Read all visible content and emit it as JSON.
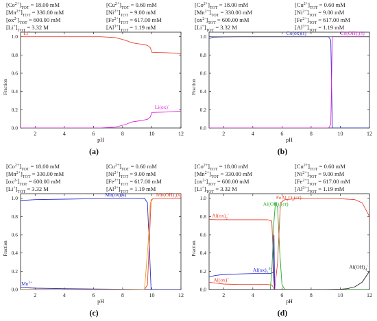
{
  "chart_data": [
    {
      "type": "line",
      "panel": "(a)",
      "header": {
        "left": [
          {
            "sym": "[Co",
            "sup": "2+",
            "sub": "]TOT",
            "val": "=   18.00 mM"
          },
          {
            "sym": "[Mn",
            "sup": "2+",
            "sub": "]TOT",
            "val": "= 330.00 mM"
          },
          {
            "sym": "[ox",
            "sup": "2-",
            "sub": "]TOT",
            "val": "= 600.00 mM"
          },
          {
            "sym": "[Li",
            "sup": "+",
            "sub": "]TOT",
            "val": "=   3.32 M"
          }
        ],
        "right": [
          {
            "sym": "[Cu",
            "sup": "2+",
            "sub": "]TOT",
            "val": "=   0.60 mM"
          },
          {
            "sym": "[Ni",
            "sup": "2+",
            "sub": "]TOT",
            "val": "=   9.00 mM"
          },
          {
            "sym": "[Fe",
            "sup": "2+",
            "sub": "]TOT",
            "val": "= 617.00 mM"
          },
          {
            "sym": "[Al",
            "sup": "3+",
            "sub": "]TOT",
            "val": "=   1.19 mM"
          }
        ]
      },
      "xlabel": "pH",
      "ylabel": "Fraction",
      "xlim": [
        1,
        12
      ],
      "ylim": [
        0,
        1.05
      ],
      "xticks": [
        2,
        4,
        6,
        8,
        10,
        12
      ],
      "yticks": [
        0.0,
        0.2,
        0.4,
        0.6,
        0.8,
        1.0
      ],
      "series": [
        {
          "name": "Li+",
          "color": "#e8412c",
          "x": [
            1,
            6.5,
            7,
            7.5,
            8,
            8.3,
            8.6,
            9,
            9.4,
            9.7,
            9.9,
            10,
            11,
            12
          ],
          "y": [
            1.0,
            1.0,
            0.995,
            0.99,
            0.97,
            0.955,
            0.935,
            0.925,
            0.915,
            0.905,
            0.88,
            0.83,
            0.825,
            0.815
          ]
        },
        {
          "name": "Li(ox)-",
          "color": "#e020e0",
          "x": [
            1,
            6.5,
            7,
            7.5,
            8,
            8.3,
            8.6,
            9,
            9.4,
            9.7,
            9.9,
            10,
            11,
            12
          ],
          "y": [
            0.0,
            0.0,
            0.005,
            0.01,
            0.03,
            0.045,
            0.065,
            0.075,
            0.085,
            0.095,
            0.12,
            0.17,
            0.175,
            0.185
          ]
        }
      ],
      "labels": [
        {
          "text": "Li",
          "sup": "+",
          "color": "#e8412c",
          "x": 1.2,
          "y": 1.02
        },
        {
          "text": "Li(ox)",
          "sup": "-",
          "color": "#e020e0",
          "x": 10.2,
          "y": 0.21
        }
      ]
    },
    {
      "type": "line",
      "panel": "(b)",
      "header": {
        "left": [
          {
            "sym": "[Co",
            "sup": "2+",
            "sub": "]TOT",
            "val": "=   18.00 mM"
          },
          {
            "sym": "[Mn",
            "sup": "2+",
            "sub": "]TOT",
            "val": "= 330.00 mM"
          },
          {
            "sym": "[ox",
            "sup": "2-",
            "sub": "]TOT",
            "val": "= 600.00 mM"
          },
          {
            "sym": "[Li",
            "sup": "+",
            "sub": "]TOT",
            "val": "=   3.32 M"
          }
        ],
        "right": [
          {
            "sym": "[Cu",
            "sup": "2+",
            "sub": "]TOT",
            "val": "=   0.60 mM"
          },
          {
            "sym": "[Ni",
            "sup": "2+",
            "sub": "]TOT",
            "val": "=   9.00 mM"
          },
          {
            "sym": "[Fe",
            "sup": "2+",
            "sub": "]TOT",
            "val": "= 617.00 mM"
          },
          {
            "sym": "[Al",
            "sup": "3+",
            "sub": "]TOT",
            "val": "=   1.19 mM"
          }
        ]
      },
      "xlabel": "pH",
      "ylabel": "Fraction",
      "xlim": [
        1,
        12
      ],
      "ylim": [
        0,
        1.05
      ],
      "xticks": [
        2,
        4,
        6,
        8,
        10,
        12
      ],
      "yticks": [
        0.0,
        0.2,
        0.4,
        0.6,
        0.8,
        1.0
      ],
      "series": [
        {
          "name": "Co(ox)(s)",
          "color": "#2a2ad0",
          "x": [
            1,
            1.3,
            2,
            3,
            6,
            9.2,
            9.35,
            9.45,
            12
          ],
          "y": [
            0.98,
            0.995,
            0.998,
            1.0,
            1.0,
            1.0,
            0.96,
            0.0,
            0.0
          ]
        },
        {
          "name": "Co(OH)2(s)",
          "color": "#e020e0",
          "x": [
            1,
            9.2,
            9.35,
            9.45,
            9.6,
            12
          ],
          "y": [
            0.0,
            0.0,
            0.04,
            1.0,
            1.0,
            1.0
          ]
        },
        {
          "name": "",
          "color": "#555555",
          "x": [
            1,
            12
          ],
          "y": [
            1.0,
            1.0
          ]
        }
      ],
      "labels": [
        {
          "text": "Co(ox)(s)",
          "sub": "",
          "color": "#2a2ad0",
          "x": 6.3,
          "y": 1.02
        },
        {
          "text": "Co(OH)",
          "sub": "2",
          "tail": "(s)",
          "color": "#e020e0",
          "x": 10.0,
          "y": 1.02
        }
      ]
    },
    {
      "type": "line",
      "panel": "(c)",
      "header": {
        "left": [
          {
            "sym": "[Co",
            "sup": "2+",
            "sub": "]TOT",
            "val": "=   18.00 mM"
          },
          {
            "sym": "[Mn",
            "sup": "2+",
            "sub": "]TOT",
            "val": "= 330.00 mM"
          },
          {
            "sym": "[ox",
            "sup": "2-",
            "sub": "]TOT",
            "val": "= 600.00 mM"
          },
          {
            "sym": "[Li",
            "sup": "+",
            "sub": "]TOT",
            "val": "=   3.32 M"
          }
        ],
        "right": [
          {
            "sym": "[Cu",
            "sup": "2+",
            "sub": "]TOT",
            "val": "=   0.60 mM"
          },
          {
            "sym": "[Ni",
            "sup": "2+",
            "sub": "]TOT",
            "val": "=   9.00 mM"
          },
          {
            "sym": "[Fe",
            "sup": "2+",
            "sub": "]TOT",
            "val": "= 617.00 mM"
          },
          {
            "sym": "[Al",
            "sup": "3+",
            "sub": "]TOT",
            "val": "=   1.19 mM"
          }
        ]
      },
      "xlabel": "pH",
      "ylabel": "Fraction",
      "xlim": [
        1,
        12
      ],
      "ylim": [
        0,
        1.05
      ],
      "xticks": [
        2,
        4,
        6,
        8,
        10,
        12
      ],
      "yticks": [
        0.0,
        0.2,
        0.4,
        0.6,
        0.8,
        1.0
      ],
      "series": [
        {
          "name": "Mn(ox)(s)",
          "color": "#2a2ad0",
          "x": [
            1,
            2,
            4,
            6,
            8,
            9.5,
            9.7,
            9.85,
            9.95,
            12
          ],
          "y": [
            0.975,
            0.985,
            0.99,
            0.995,
            0.998,
            1.0,
            0.95,
            0.4,
            0.0,
            0.0
          ]
        },
        {
          "name": "Mn(OH)2(s)",
          "color": "#e8412c",
          "x": [
            1,
            9.5,
            9.7,
            9.85,
            9.95,
            10.1,
            12
          ],
          "y": [
            0.0,
            0.0,
            0.05,
            0.6,
            0.98,
            1.0,
            1.0
          ]
        },
        {
          "name": "Mn2+",
          "color": "#2a2ad0",
          "x": [
            1,
            2,
            4,
            6,
            8,
            9.5,
            10,
            12
          ],
          "y": [
            0.022,
            0.015,
            0.01,
            0.006,
            0.003,
            0.001,
            0.0,
            0.0
          ]
        },
        {
          "name": "",
          "color": "#e8a020",
          "x": [
            1,
            9.5,
            9.75,
            9.9,
            10.1
          ],
          "y": [
            0.0,
            0.0,
            0.5,
            0.95,
            1.0
          ]
        }
      ],
      "labels": [
        {
          "text": "Mn(ox)(s)",
          "sub": "",
          "color": "#2a2ad0",
          "x": 6.8,
          "y": 1.02
        },
        {
          "text": "Mn(OH)",
          "sub": "2",
          "tail": "(s)",
          "color": "#e8412c",
          "x": 10.3,
          "y": 1.02
        },
        {
          "text": "Mn",
          "sup": "2+",
          "color": "#2a2ad0",
          "x": 1.05,
          "y": 0.045
        }
      ]
    },
    {
      "type": "line",
      "panel": "(d)",
      "header": {
        "left": [
          {
            "sym": "[Co",
            "sup": "2+",
            "sub": "]TOT",
            "val": "=   18.00 mM"
          },
          {
            "sym": "[Mn",
            "sup": "2+",
            "sub": "]TOT",
            "val": "= 330.00 mM"
          },
          {
            "sym": "[ox",
            "sup": "2-",
            "sub": "]TOT",
            "val": "= 600.00 mM"
          },
          {
            "sym": "[Li",
            "sup": "+",
            "sub": "]TOT",
            "val": "=   3.32 M"
          }
        ],
        "right": [
          {
            "sym": "[Cu",
            "sup": "2+",
            "sub": "]TOT",
            "val": "=   0.60 mM"
          },
          {
            "sym": "[Ni",
            "sup": "2+",
            "sub": "]TOT",
            "val": "=   9.00 mM"
          },
          {
            "sym": "[Fe",
            "sup": "2+",
            "sub": "]TOT",
            "val": "= 617.00 mM"
          },
          {
            "sym": "[Al",
            "sup": "3+",
            "sub": "]TOT",
            "val": "=   1.19 mM"
          }
        ]
      },
      "xlabel": "pH",
      "ylabel": "Fraction",
      "xlim": [
        1,
        12
      ],
      "ylim": [
        0,
        1.05
      ],
      "xticks": [
        2,
        4,
        6,
        8,
        10,
        12
      ],
      "yticks": [
        0.0,
        0.2,
        0.4,
        0.6,
        0.8,
        1.0
      ],
      "series": [
        {
          "name": "Al(ox)2-",
          "color": "#e8412c",
          "x": [
            1,
            1.5,
            2,
            3,
            4,
            5,
            5.3,
            5.5,
            12
          ],
          "y": [
            0.77,
            0.765,
            0.765,
            0.765,
            0.765,
            0.765,
            0.75,
            0.0,
            0.0
          ]
        },
        {
          "name": "Al(ox)3-3",
          "color": "#2a2ad0",
          "x": [
            1,
            1.5,
            2,
            3,
            4,
            5,
            5.2,
            5.4,
            5.5,
            12
          ],
          "y": [
            0.14,
            0.155,
            0.165,
            0.17,
            0.175,
            0.175,
            0.175,
            0.19,
            0.0,
            0.0
          ]
        },
        {
          "name": "Al(ox)+",
          "color": "#e8412c",
          "x": [
            1,
            1.5,
            2,
            3,
            4,
            5,
            5.3,
            5.5,
            12
          ],
          "y": [
            0.08,
            0.07,
            0.06,
            0.055,
            0.055,
            0.055,
            0.05,
            0.0,
            0.0
          ]
        },
        {
          "name": "Al(OH)3(cr)",
          "color": "#22aa22",
          "x": [
            1,
            5.2,
            5.3,
            5.45,
            5.55,
            5.7,
            5.85,
            6.0,
            6.2,
            12
          ],
          "y": [
            0.0,
            0.0,
            0.2,
            0.75,
            0.95,
            0.9,
            0.4,
            0.05,
            0.0,
            0.0
          ]
        },
        {
          "name": "FeAl2O4(cr)",
          "color": "#e8412c",
          "x": [
            1,
            5.5,
            5.7,
            5.9,
            6.2,
            7,
            8,
            9,
            10,
            11,
            11.5,
            12
          ],
          "y": [
            0.0,
            0.0,
            0.3,
            0.95,
            0.985,
            0.995,
            1.0,
            1.0,
            0.995,
            0.985,
            0.95,
            0.8
          ]
        },
        {
          "name": "Al(OH)4-",
          "color": "#222222",
          "x": [
            1,
            9,
            10,
            10.5,
            11,
            11.5,
            12
          ],
          "y": [
            0.0,
            0.0,
            0.003,
            0.01,
            0.03,
            0.08,
            0.2
          ]
        },
        {
          "name": "",
          "color": "#2a2ad0",
          "x": [
            5.4,
            5.45,
            5.5
          ],
          "y": [
            0.19,
            0.6,
            0.0
          ]
        }
      ],
      "labels": [
        {
          "text": "Al(ox)",
          "sub": "2",
          "sup": "-",
          "color": "#e8412c",
          "x": 1.2,
          "y": 0.79
        },
        {
          "text": "Al(ox)",
          "sub": "3",
          "sup": "3-",
          "color": "#2a2ad0",
          "x": 4.0,
          "y": 0.195
        },
        {
          "text": "Al(ox)",
          "sup": "+",
          "color": "#e8412c",
          "x": 1.3,
          "y": 0.085
        },
        {
          "text": "Al(OH)",
          "sub": "3",
          "tail": "(cr)",
          "color": "#22aa22",
          "x": 4.7,
          "y": 0.92
        },
        {
          "text": "FeAl",
          "sub": "2",
          "tail": "O",
          "sub2": "4",
          "tail2": "(cr)",
          "color": "#e8412c",
          "x": 5.6,
          "y": 0.99
        },
        {
          "text": "Al(OH)",
          "sub": "4",
          "sup": "-",
          "color": "#222222",
          "x": 10.6,
          "y": 0.23
        }
      ]
    }
  ],
  "captions": [
    "(a)",
    "(b)",
    "(c)",
    "(d)"
  ]
}
